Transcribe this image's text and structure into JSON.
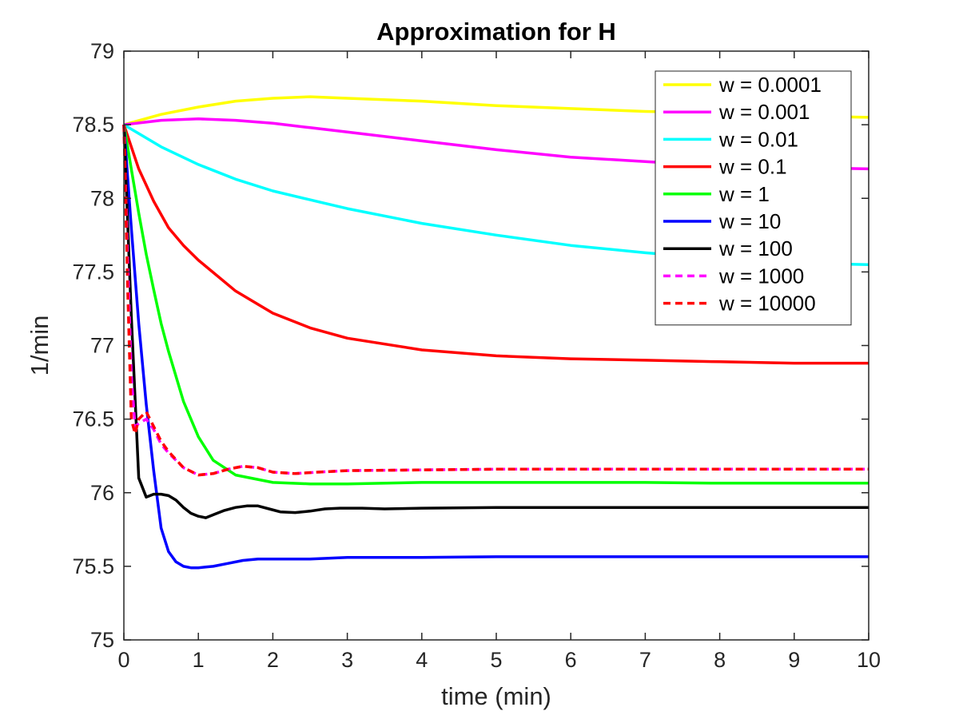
{
  "chart_data": {
    "type": "line",
    "title": "Approximation for H",
    "xlabel": "time (min)",
    "ylabel": "1/min",
    "xlim": [
      0,
      10
    ],
    "ylim": [
      75,
      79
    ],
    "x_ticks": [
      "0",
      "1",
      "2",
      "3",
      "4",
      "5",
      "6",
      "7",
      "8",
      "9",
      "10"
    ],
    "y_ticks": [
      "75",
      "75.5",
      "76",
      "76.5",
      "77",
      "77.5",
      "78",
      "78.5",
      "79"
    ],
    "grid": false,
    "legend_position": "top-right",
    "series": [
      {
        "name": "w = 0.0001",
        "color": "#ffff00",
        "dash": false,
        "x": [
          0,
          0.5,
          1,
          1.5,
          2,
          2.5,
          3,
          4,
          5,
          6,
          7,
          8,
          9,
          10
        ],
        "y": [
          78.5,
          78.57,
          78.62,
          78.66,
          78.68,
          78.69,
          78.68,
          78.66,
          78.63,
          78.61,
          78.59,
          78.58,
          78.56,
          78.55
        ]
      },
      {
        "name": "w = 0.001",
        "color": "#ff00ff",
        "dash": false,
        "x": [
          0,
          0.5,
          1,
          1.5,
          2,
          2.5,
          3,
          4,
          5,
          6,
          7,
          8,
          9,
          10
        ],
        "y": [
          78.5,
          78.53,
          78.54,
          78.53,
          78.51,
          78.48,
          78.45,
          78.39,
          78.33,
          78.28,
          78.25,
          78.22,
          78.21,
          78.2
        ]
      },
      {
        "name": "w = 0.01",
        "color": "#00ffff",
        "dash": false,
        "x": [
          0,
          0.5,
          1,
          1.5,
          2,
          2.5,
          3,
          4,
          5,
          6,
          7,
          8,
          9,
          10
        ],
        "y": [
          78.5,
          78.35,
          78.23,
          78.13,
          78.05,
          77.99,
          77.93,
          77.83,
          77.75,
          77.68,
          77.63,
          77.59,
          77.56,
          77.55
        ]
      },
      {
        "name": "w = 0.1",
        "color": "#ff0000",
        "dash": false,
        "x": [
          0,
          0.2,
          0.4,
          0.6,
          0.8,
          1,
          1.5,
          2,
          2.5,
          3,
          4,
          5,
          6,
          7,
          8,
          9,
          10
        ],
        "y": [
          78.5,
          78.2,
          77.98,
          77.8,
          77.68,
          77.58,
          77.37,
          77.22,
          77.12,
          77.05,
          76.97,
          76.93,
          76.91,
          76.9,
          76.89,
          76.88,
          76.88
        ]
      },
      {
        "name": "w = 1",
        "color": "#00ff00",
        "dash": false,
        "x": [
          0,
          0.1,
          0.2,
          0.3,
          0.4,
          0.5,
          0.6,
          0.8,
          1,
          1.2,
          1.5,
          2,
          2.5,
          3,
          4,
          5,
          6,
          7,
          8,
          9,
          10
        ],
        "y": [
          78.5,
          78.2,
          77.9,
          77.62,
          77.38,
          77.15,
          76.96,
          76.62,
          76.38,
          76.22,
          76.12,
          76.07,
          76.06,
          76.06,
          76.07,
          76.07,
          76.07,
          76.07,
          76.065,
          76.065,
          76.065
        ]
      },
      {
        "name": "w = 10",
        "color": "#0000ff",
        "dash": false,
        "x": [
          0,
          0.1,
          0.2,
          0.3,
          0.4,
          0.5,
          0.6,
          0.7,
          0.8,
          0.9,
          1,
          1.1,
          1.2,
          1.4,
          1.6,
          1.8,
          2,
          2.5,
          3,
          4,
          5,
          6,
          7,
          8,
          9,
          10
        ],
        "y": [
          78.5,
          77.8,
          77.15,
          76.6,
          76.15,
          75.76,
          75.6,
          75.53,
          75.5,
          75.49,
          75.49,
          75.495,
          75.5,
          75.52,
          75.54,
          75.55,
          75.55,
          75.55,
          75.56,
          75.56,
          75.565,
          75.565,
          75.565,
          75.565,
          75.565,
          75.565
        ]
      },
      {
        "name": "w = 100",
        "color": "#000000",
        "dash": false,
        "x": [
          0,
          0.1,
          0.2,
          0.3,
          0.4,
          0.5,
          0.6,
          0.7,
          0.8,
          0.9,
          1,
          1.1,
          1.2,
          1.35,
          1.5,
          1.65,
          1.8,
          1.95,
          2.1,
          2.3,
          2.5,
          2.7,
          2.9,
          3.2,
          3.5,
          4,
          5,
          6,
          7,
          8,
          9,
          10
        ],
        "y": [
          78.5,
          77.2,
          76.1,
          75.97,
          75.99,
          75.99,
          75.98,
          75.95,
          75.9,
          75.86,
          75.84,
          75.83,
          75.85,
          75.88,
          75.9,
          75.91,
          75.91,
          75.89,
          75.87,
          75.865,
          75.875,
          75.89,
          75.895,
          75.895,
          75.89,
          75.895,
          75.9,
          75.9,
          75.9,
          75.9,
          75.9,
          75.9
        ]
      },
      {
        "name": "w = 1000",
        "color": "#ff00ff",
        "dash": true,
        "x": [
          0,
          0.05,
          0.1,
          0.15,
          0.2,
          0.3,
          0.4,
          0.5,
          0.6,
          0.8,
          1,
          1.2,
          1.4,
          1.6,
          1.8,
          2,
          2.3,
          2.6,
          3,
          4,
          5,
          6,
          7,
          8,
          9,
          10
        ],
        "y": [
          78.5,
          77.6,
          76.8,
          76.45,
          76.47,
          76.5,
          76.43,
          76.33,
          76.27,
          76.17,
          76.12,
          76.13,
          76.16,
          76.18,
          76.17,
          76.14,
          76.13,
          76.14,
          76.15,
          76.155,
          76.16,
          76.16,
          76.16,
          76.16,
          76.16,
          76.16
        ]
      },
      {
        "name": "w = 10000",
        "color": "#ff0000",
        "dash": true,
        "x": [
          0,
          0.05,
          0.1,
          0.15,
          0.2,
          0.3,
          0.4,
          0.5,
          0.6,
          0.8,
          1,
          1.2,
          1.4,
          1.6,
          1.8,
          2,
          2.3,
          2.6,
          3,
          4,
          5,
          6,
          7,
          8,
          9,
          10
        ],
        "y": [
          78.5,
          77.4,
          76.5,
          76.4,
          76.5,
          76.55,
          76.45,
          76.35,
          76.28,
          76.17,
          76.12,
          76.13,
          76.16,
          76.18,
          76.17,
          76.14,
          76.13,
          76.14,
          76.15,
          76.155,
          76.16,
          76.16,
          76.16,
          76.16,
          76.16,
          76.16
        ]
      }
    ]
  }
}
